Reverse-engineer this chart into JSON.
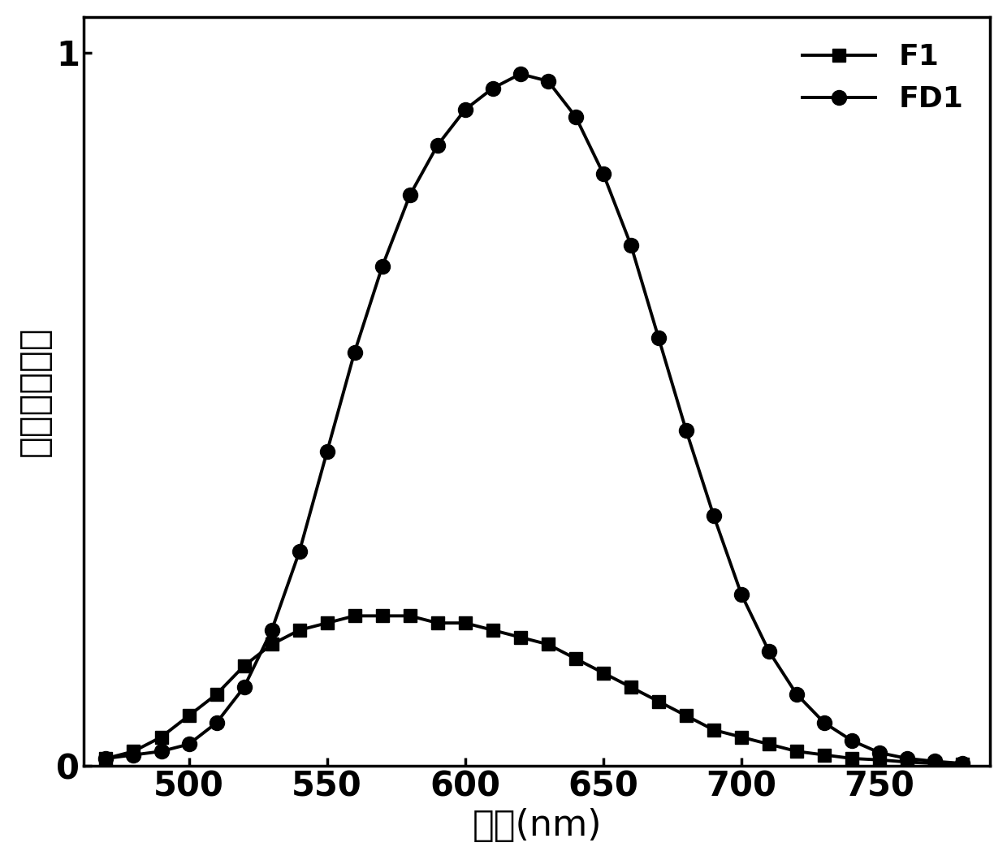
{
  "x_F1": [
    470,
    480,
    490,
    500,
    510,
    520,
    530,
    540,
    550,
    560,
    570,
    580,
    590,
    600,
    610,
    620,
    630,
    640,
    650,
    660,
    670,
    680,
    690,
    700,
    710,
    720,
    730,
    740,
    750,
    760,
    770,
    780
  ],
  "y_F1": [
    0.01,
    0.02,
    0.04,
    0.07,
    0.1,
    0.14,
    0.17,
    0.19,
    0.2,
    0.21,
    0.21,
    0.21,
    0.2,
    0.2,
    0.19,
    0.18,
    0.17,
    0.15,
    0.13,
    0.11,
    0.09,
    0.07,
    0.05,
    0.04,
    0.03,
    0.02,
    0.015,
    0.01,
    0.008,
    0.005,
    0.003,
    0.002
  ],
  "x_FD1": [
    470,
    480,
    490,
    500,
    510,
    520,
    530,
    540,
    550,
    560,
    570,
    580,
    590,
    600,
    610,
    620,
    630,
    640,
    650,
    660,
    670,
    680,
    690,
    700,
    710,
    720,
    730,
    740,
    750,
    760,
    770,
    780
  ],
  "y_FD1": [
    0.01,
    0.015,
    0.02,
    0.03,
    0.06,
    0.11,
    0.19,
    0.3,
    0.44,
    0.58,
    0.7,
    0.8,
    0.87,
    0.92,
    0.95,
    0.97,
    0.96,
    0.91,
    0.83,
    0.73,
    0.6,
    0.47,
    0.35,
    0.24,
    0.16,
    0.1,
    0.06,
    0.035,
    0.018,
    0.01,
    0.006,
    0.003
  ],
  "xlabel": "波长(nm)",
  "ylabel": "相对荧光强度",
  "xlim": [
    462,
    790
  ],
  "ylim": [
    0,
    1.05
  ],
  "yticks": [
    0,
    1
  ],
  "xticks": [
    500,
    550,
    600,
    650,
    700,
    750
  ],
  "line_color": "#000000",
  "legend_F1": "F1",
  "legend_FD1": "FD1",
  "marker_F1": "s",
  "marker_FD1": "o",
  "marker_size_F1": 11,
  "marker_size_FD1": 13,
  "linewidth": 2.8,
  "xlabel_fontsize": 32,
  "ylabel_fontsize": 32,
  "tick_fontsize": 30,
  "legend_fontsize": 26,
  "background_color": "#ffffff"
}
